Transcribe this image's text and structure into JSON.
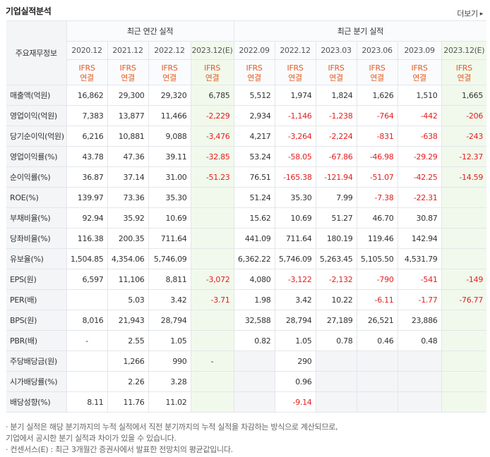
{
  "header": {
    "title": "기업실적분석",
    "more": "더보기"
  },
  "table": {
    "row_header_label": "주요재무정보",
    "annual_group_label": "최근 연간 실적",
    "quarterly_group_label": "최근 분기 실적",
    "annual_periods": [
      "2020.12",
      "2021.12",
      "2022.12",
      "2023.12(E)"
    ],
    "quarterly_periods": [
      "2022.09",
      "2022.12",
      "2023.03",
      "2023.06",
      "2023.09",
      "2023.12(E)"
    ],
    "ifrs_line1": "IFRS",
    "ifrs_line2": "연결",
    "rows": [
      {
        "label": "매출액(억원)",
        "values": [
          "16,862",
          "29,300",
          "29,320",
          "6,785",
          "5,512",
          "1,974",
          "1,824",
          "1,626",
          "1,510",
          "1,665"
        ]
      },
      {
        "label": "영업이익(억원)",
        "values": [
          "7,383",
          "13,877",
          "11,466",
          "-2,229",
          "2,934",
          "-1,146",
          "-1,238",
          "-764",
          "-442",
          "-206"
        ]
      },
      {
        "label": "당기순이익(억원)",
        "values": [
          "6,216",
          "10,881",
          "9,088",
          "-3,476",
          "4,217",
          "-3,264",
          "-2,224",
          "-831",
          "-638",
          "-243"
        ]
      },
      {
        "label": "영업이익률(%)",
        "values": [
          "43.78",
          "47.36",
          "39.11",
          "-32.85",
          "53.24",
          "-58.05",
          "-67.86",
          "-46.98",
          "-29.29",
          "-12.37"
        ]
      },
      {
        "label": "순이익률(%)",
        "values": [
          "36.87",
          "37.14",
          "31.00",
          "-51.23",
          "76.51",
          "-165.38",
          "-121.94",
          "-51.07",
          "-42.25",
          "-14.59"
        ]
      },
      {
        "label": "ROE(%)",
        "values": [
          "139.97",
          "73.36",
          "35.30",
          "",
          "51.24",
          "35.30",
          "7.99",
          "-7.38",
          "-22.31",
          ""
        ]
      },
      {
        "label": "부채비율(%)",
        "values": [
          "92.94",
          "35.92",
          "10.69",
          "",
          "15.62",
          "10.69",
          "51.27",
          "46.70",
          "30.87",
          ""
        ]
      },
      {
        "label": "당좌비율(%)",
        "values": [
          "116.38",
          "200.35",
          "711.64",
          "",
          "441.09",
          "711.64",
          "180.19",
          "119.46",
          "142.94",
          ""
        ]
      },
      {
        "label": "유보율(%)",
        "values": [
          "1,504.85",
          "4,354.06",
          "5,746.09",
          "",
          "6,362.22",
          "5,746.09",
          "5,263.45",
          "5,105.50",
          "4,531.79",
          ""
        ]
      },
      {
        "label": "EPS(원)",
        "values": [
          "6,597",
          "11,106",
          "8,811",
          "-3,072",
          "4,080",
          "-3,122",
          "-2,132",
          "-790",
          "-541",
          "-149"
        ]
      },
      {
        "label": "PER(배)",
        "values": [
          "",
          "5.03",
          "3.42",
          "-3.71",
          "1.98",
          "3.42",
          "10.22",
          "-6.11",
          "-1.77",
          "-76.77"
        ]
      },
      {
        "label": "BPS(원)",
        "values": [
          "8,016",
          "21,943",
          "28,794",
          "",
          "32,588",
          "28,794",
          "27,189",
          "26,521",
          "23,886",
          ""
        ]
      },
      {
        "label": "PBR(배)",
        "values": [
          "-",
          "2.55",
          "1.05",
          "",
          "0.82",
          "1.05",
          "0.78",
          "0.46",
          "0.48",
          ""
        ]
      },
      {
        "label": "주당배당금(원)",
        "values": [
          "",
          "1,266",
          "990",
          "-",
          "",
          "290",
          "",
          "",
          "",
          ""
        ]
      },
      {
        "label": "시가배당률(%)",
        "values": [
          "",
          "2.26",
          "3.28",
          "",
          "",
          "0.96",
          "",
          "",
          "",
          ""
        ]
      },
      {
        "label": "배당성향(%)",
        "values": [
          "8.11",
          "11.76",
          "11.02",
          "",
          "",
          "-9.14",
          "",
          "",
          "",
          ""
        ]
      }
    ]
  },
  "notes": [
    "· 분기 실적은 해당 분기까지의 누적 실적에서 직전 분기까지의 누적 실적을 차감하는 방식으로 계산되므로,",
    "   기업에서 공시한 분기 실적과 차이가 있을 수 있습니다.",
    "· 컨센서스(E) : 최근 3개월간 증권사에서 발표한 전망치의 평균값입니다."
  ],
  "colors": {
    "estimate_bg": "#f1f9ec",
    "ifrs_text": "#e35d24",
    "negative": "#e41e1e",
    "label_bg": "#f4f5f7"
  }
}
